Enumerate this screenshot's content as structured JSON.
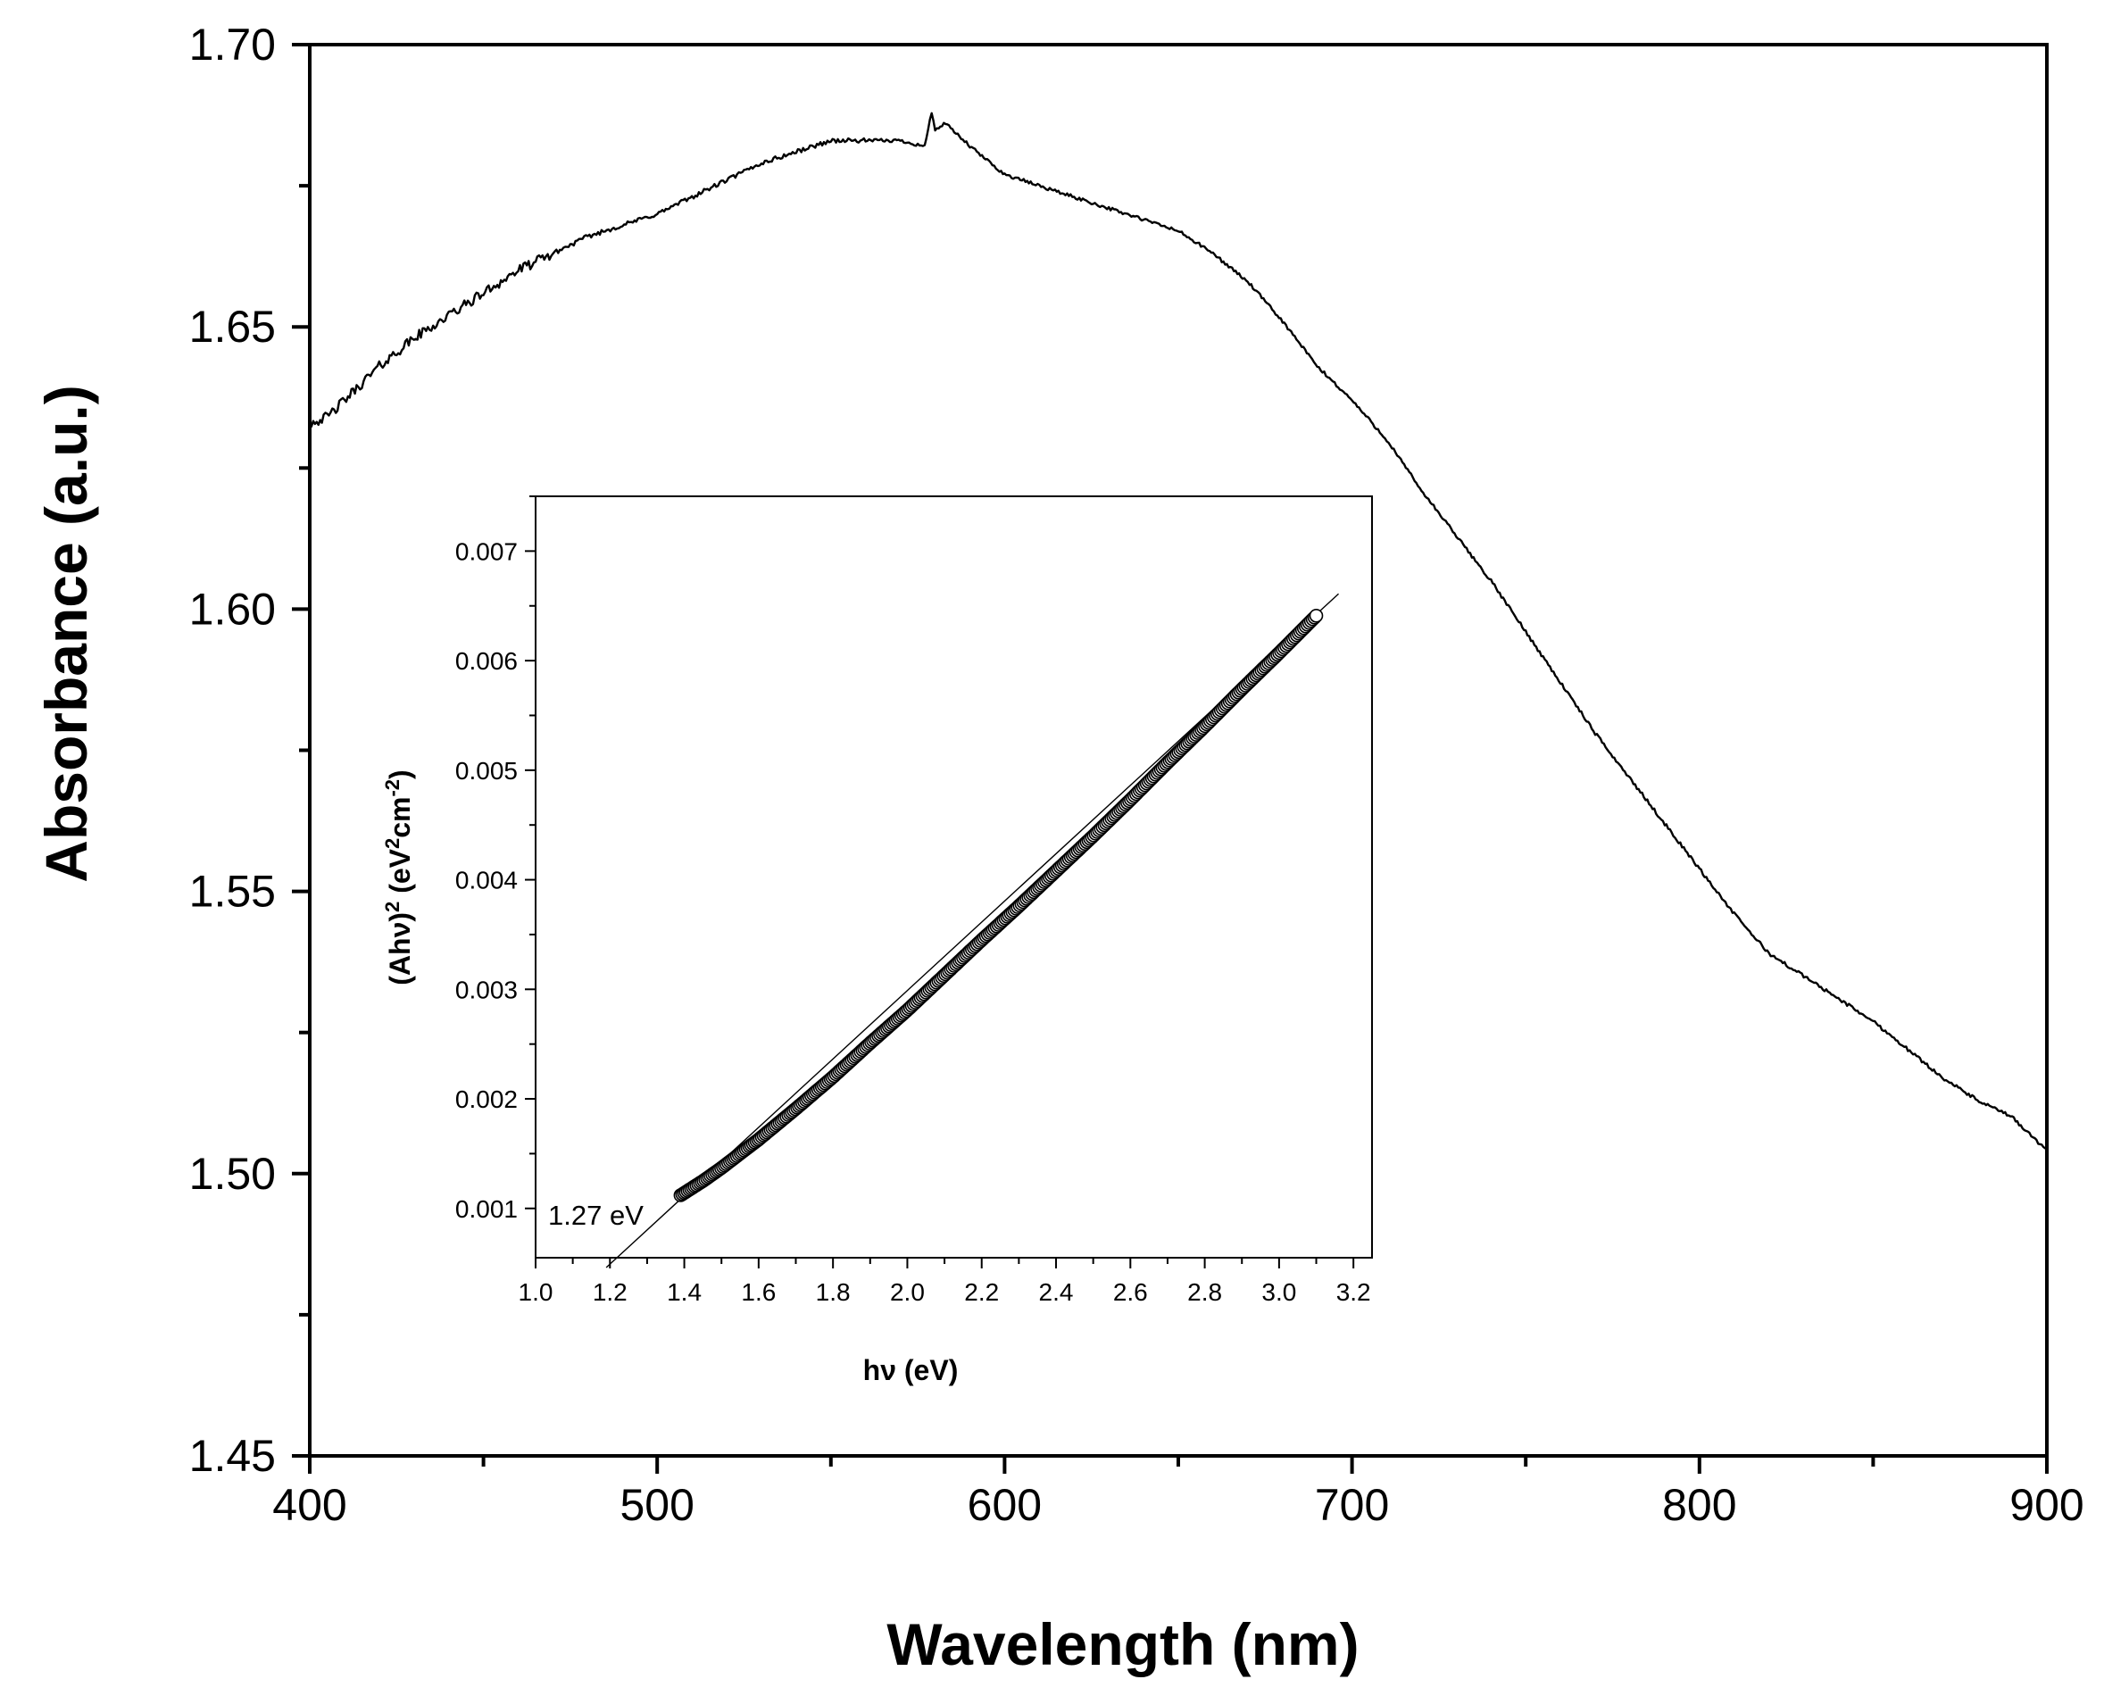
{
  "chart_data": [
    {
      "id": "main",
      "type": "line",
      "title": "",
      "xlabel": "Wavelength (nm)",
      "ylabel": "Absorbance (a.u.)",
      "xlim": [
        400,
        900
      ],
      "ylim": [
        1.45,
        1.7
      ],
      "xticks": [
        400,
        500,
        600,
        700,
        800,
        900
      ],
      "xtick_labels": [
        "400",
        "500",
        "600",
        "700",
        "800",
        "900"
      ],
      "yticks": [
        1.45,
        1.5,
        1.55,
        1.6,
        1.65,
        1.7
      ],
      "ytick_labels": [
        "1.45",
        "1.50",
        "1.55",
        "1.60",
        "1.65",
        "1.70"
      ],
      "grid": false,
      "series": [
        {
          "name": "Absorbance",
          "x": [
            400,
            405,
            410,
            420,
            430,
            440,
            450,
            460,
            470,
            480,
            490,
            500,
            510,
            520,
            530,
            540,
            550,
            555,
            560,
            570,
            577,
            578,
            579,
            580,
            583,
            590,
            600,
            610,
            620,
            630,
            640,
            650,
            660,
            670,
            680,
            690,
            700,
            710,
            720,
            730,
            740,
            750,
            760,
            770,
            780,
            790,
            800,
            810,
            820,
            830,
            840,
            850,
            860,
            870,
            880,
            890,
            900
          ],
          "y": [
            1.633,
            1.634,
            1.637,
            1.643,
            1.648,
            1.652,
            1.656,
            1.66,
            1.663,
            1.666,
            1.668,
            1.67,
            1.673,
            1.676,
            1.679,
            1.681,
            1.683,
            1.683,
            1.683,
            1.683,
            1.682,
            1.685,
            1.688,
            1.685,
            1.686,
            1.682,
            1.677,
            1.675,
            1.673,
            1.671,
            1.669,
            1.667,
            1.663,
            1.658,
            1.651,
            1.643,
            1.637,
            1.63,
            1.621,
            1.613,
            1.605,
            1.596,
            1.587,
            1.578,
            1.57,
            1.562,
            1.554,
            1.546,
            1.539,
            1.535,
            1.531,
            1.527,
            1.522,
            1.517,
            1.513,
            1.51,
            1.504
          ]
        }
      ]
    },
    {
      "id": "inset",
      "type": "scatter",
      "title": "",
      "xlabel": "hν (eV)",
      "ylabel_prefix": "(Ahν)",
      "ylabel_sup1": "2",
      "ylabel_mid": " (eV",
      "ylabel_sup2": "2",
      "ylabel_mid2": "cm",
      "ylabel_sup3": "-2",
      "ylabel_suffix": ")",
      "xlim": [
        1.0,
        3.25
      ],
      "ylim": [
        0.00055,
        0.0075
      ],
      "xticks": [
        1.0,
        1.2,
        1.4,
        1.6,
        1.8,
        2.0,
        2.2,
        2.4,
        2.6,
        2.8,
        3.0,
        3.2
      ],
      "xtick_labels": [
        "1.0",
        "1.2",
        "1.4",
        "1.6",
        "1.8",
        "2.0",
        "2.2",
        "2.4",
        "2.6",
        "2.8",
        "3.0",
        "3.2"
      ],
      "yticks": [
        0.001,
        0.002,
        0.003,
        0.004,
        0.005,
        0.006,
        0.007
      ],
      "ytick_labels": [
        "0.001",
        "0.002",
        "0.003",
        "0.004",
        "0.005",
        "0.006",
        "0.007"
      ],
      "grid": false,
      "series": [
        {
          "name": "(Ahν)² data",
          "marker": "open-circle",
          "x": [
            1.39,
            1.45,
            1.5,
            1.55,
            1.6,
            1.7,
            1.8,
            1.9,
            2.0,
            2.1,
            2.2,
            2.3,
            2.4,
            2.5,
            2.6,
            2.7,
            2.8,
            2.9,
            3.0,
            3.1
          ],
          "y": [
            0.00112,
            0.00125,
            0.00137,
            0.0015,
            0.00163,
            0.00191,
            0.0022,
            0.00251,
            0.00281,
            0.00313,
            0.00345,
            0.00376,
            0.00408,
            0.0044,
            0.00473,
            0.00507,
            0.0054,
            0.00574,
            0.00607,
            0.00641
          ]
        },
        {
          "name": "Linear fit",
          "marker": "line",
          "x": [
            1.19,
            3.16
          ],
          "y": [
            0.00046,
            0.00661
          ]
        }
      ],
      "annotation": "1.27 eV"
    }
  ],
  "colors": {
    "background": "#ffffff",
    "axis": "#000000",
    "line": "#000000"
  }
}
